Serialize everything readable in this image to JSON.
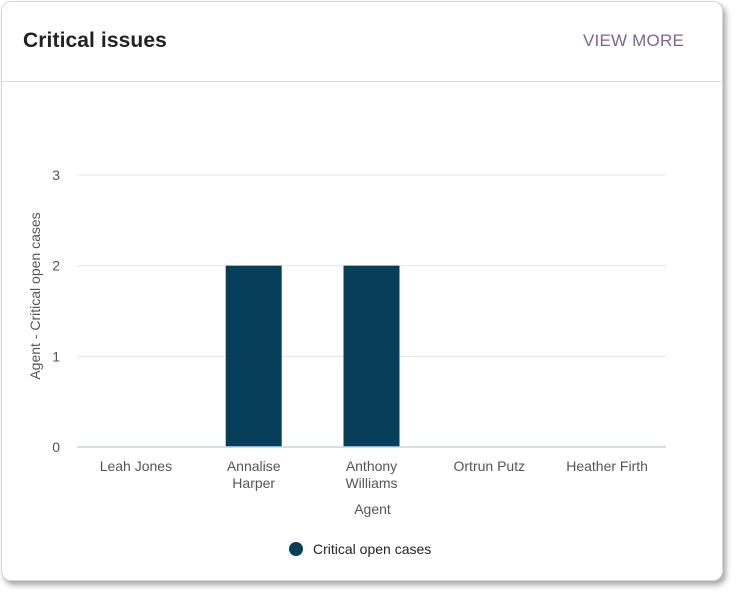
{
  "card": {
    "title": "Critical issues",
    "view_more_label": "VIEW MORE"
  },
  "colors": {
    "bar": "#073f5a",
    "grid": "#e6e6e6",
    "axis": "#c9d3e6",
    "view_more": "#7b6690"
  },
  "chart_data": {
    "type": "bar",
    "categories": [
      [
        "Leah Jones"
      ],
      [
        "Annalise",
        "Harper"
      ],
      [
        "Anthony",
        "Williams"
      ],
      [
        "Ortrun Putz"
      ],
      [
        "Heather Firth"
      ]
    ],
    "series": [
      {
        "name": "Critical open cases",
        "values": [
          0,
          2,
          2,
          0,
          0
        ]
      }
    ],
    "xlabel": "Agent",
    "ylabel": "Agent - Critical open cases",
    "ylim": [
      0,
      3
    ],
    "yticks": [
      0,
      1,
      2,
      3
    ],
    "grid": true,
    "legend": "bottom-center"
  }
}
